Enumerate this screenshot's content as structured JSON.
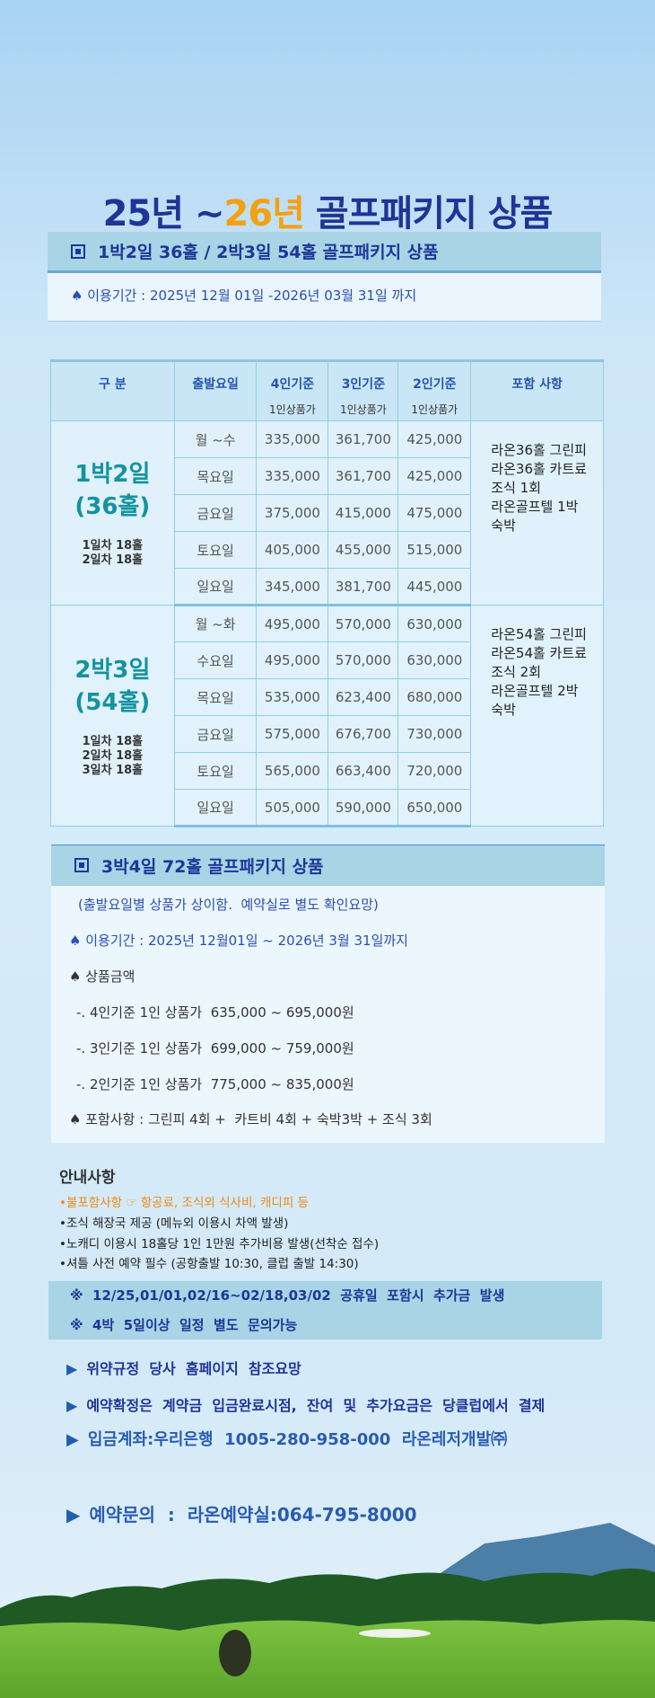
{
  "title": {
    "part1": "25년 ~",
    "part2": "26년",
    "part3": " 골프패키지 상품"
  },
  "colors": {
    "navy": "#1f3597",
    "orange": "#f3a012",
    "teal": "#13939f",
    "band": "#a8d4e6"
  },
  "section1": {
    "heading": "1박2일  36홀  /  2박3일  54홀  골프패키지  상품",
    "period": "이용기간 : 2025년 12월 01일 -2026년 03월 31일 까지"
  },
  "table": {
    "headers": [
      {
        "label": "구   분"
      },
      {
        "label": "출발요일"
      },
      {
        "label": "4인기준",
        "sub": "1인상품가"
      },
      {
        "label": "3인기준",
        "sub": "1인상품가"
      },
      {
        "label": "2인기준",
        "sub": "1인상품가"
      },
      {
        "label": "포함 사항"
      }
    ],
    "groups": [
      {
        "name1": "1박2일",
        "name2": "(36홀)",
        "detail": [
          "1일차 18홀",
          "2일차 18홀"
        ],
        "includes": [
          "라온36홀 그린피",
          "라온36홀 카트료",
          "조식 1회",
          "라온골프텔 1박",
          "숙박"
        ],
        "rows": [
          [
            "월 ~수",
            "335,000",
            "361,700",
            "425,000"
          ],
          [
            "목요일",
            "335,000",
            "361,700",
            "425,000"
          ],
          [
            "금요일",
            "375,000",
            "415,000",
            "475,000"
          ],
          [
            "토요일",
            "405,000",
            "455,000",
            "515,000"
          ],
          [
            "일요일",
            "345,000",
            "381,700",
            "445,000"
          ]
        ]
      },
      {
        "name1": "2박3일",
        "name2": "(54홀)",
        "detail": [
          "1일차 18홀",
          "2일차 18홀",
          "3일차 18홀"
        ],
        "includes": [
          "라온54홀 그린피",
          "라온54홀 카트료",
          "조식 2회",
          "라온골프텔 2박",
          "숙박"
        ],
        "rows": [
          [
            "월 ~화",
            "495,000",
            "570,000",
            "630,000"
          ],
          [
            "수요일",
            "495,000",
            "570,000",
            "630,000"
          ],
          [
            "목요일",
            "535,000",
            "623,400",
            "680,000"
          ],
          [
            "금요일",
            "575,000",
            "676,700",
            "730,000"
          ],
          [
            "토요일",
            "565,000",
            "663,400",
            "720,000"
          ],
          [
            "일요일",
            "505,000",
            "590,000",
            "650,000"
          ]
        ]
      }
    ]
  },
  "section2": {
    "heading": "3박4일  72홀  골프패키지  상품",
    "note": "(출발요일별 상품가 상이함.  예약실로 별도 확인요망)",
    "period": "이용기간 : 2025년 12월01일 ~ 2026년 3월 31일까지",
    "price_label": "상품금액",
    "prices": [
      "-. 4인기준 1인 상품가  635,000 ~ 695,000원",
      "-. 3인기준 1인 상품가  699,000 ~ 759,000원",
      "-. 2인기준 1인 상품가  775,000 ~ 835,000원"
    ],
    "includes": "포함사항 : 그린피 4회 +  카트비 4회 + 숙박3박 + 조식 3회"
  },
  "guide": {
    "title": "안내사항",
    "items": [
      "•불포함사항 ☞ 항공료, 조식외 식사비, 캐디피 등",
      "•조식  해장국 제공 (메뉴외 이용시 차액 발생)",
      "•노캐디 이용시 18홀당 1인 1만원 추가비용 발생(선착순 접수)",
      "•셔틀 사전 예약 필수 (공항출발 10:30, 클럽 출발 14:30)"
    ]
  },
  "notes": [
    "※  12/25,01/01,02/16~02/18,03/02  공휴일  포함시  추가금  발생",
    "※  4박  5일이상  일정  별도  문의가능"
  ],
  "info": [
    "위약규정  당사  홈페이지  참조요망",
    "예약확정은  계약금  입금완료시점,  잔여  및  추가요금은  당클럽에서  결제",
    "입금계좌:우리은행  1005-280-958-000  라온레저개발㈜",
    "예약문의  :  라온예약실:064-795-8000"
  ]
}
